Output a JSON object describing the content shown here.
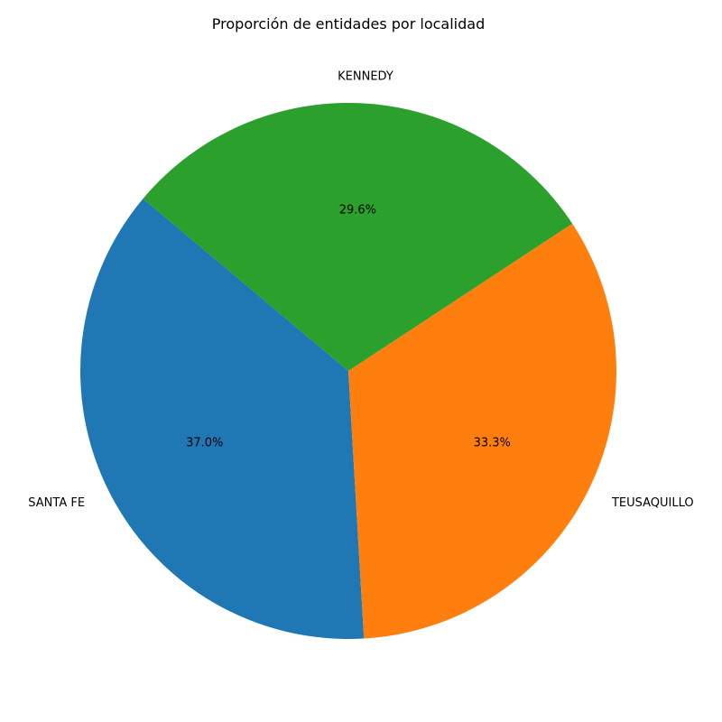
{
  "chart_data": {
    "type": "pie",
    "title": "Proporción de entidades por localidad",
    "start_angle_deg": 140,
    "direction": "counterclockwise",
    "slices": [
      {
        "label": "SANTA FE",
        "value": 37.0,
        "pct_label": "37.0%",
        "color": "#1f77b4"
      },
      {
        "label": "TEUSAQUILLO",
        "value": 33.3,
        "pct_label": "33.3%",
        "color": "#ff7f0e"
      },
      {
        "label": "KENNEDY",
        "value": 29.6,
        "pct_label": "29.6%",
        "color": "#2ca02c"
      }
    ]
  }
}
